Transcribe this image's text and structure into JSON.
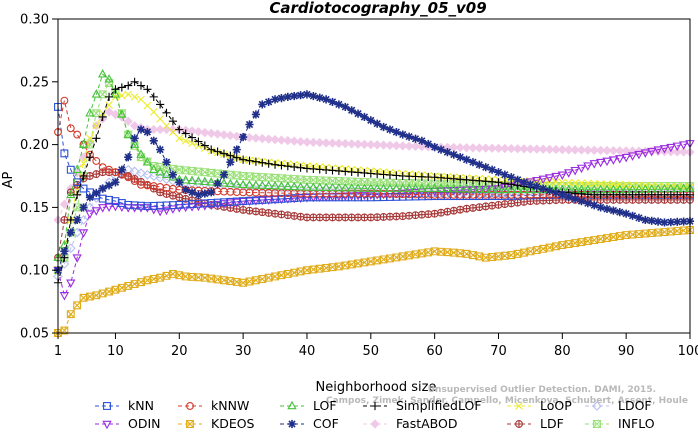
{
  "chart_data": {
    "type": "line",
    "title": "Cardiotocography_05_v09",
    "xlabel": "Neighborhood size",
    "ylabel": "AP",
    "xlim": [
      1,
      100
    ],
    "ylim": [
      0.05,
      0.3
    ],
    "xticks": [
      1,
      10,
      20,
      30,
      40,
      50,
      60,
      70,
      80,
      90,
      100
    ],
    "yticks": [
      0.05,
      0.1,
      0.15,
      0.2,
      0.25,
      0.3
    ],
    "xtick_labels": [
      "1",
      "10",
      "20",
      "30",
      "40",
      "50",
      "60",
      "70",
      "80",
      "90",
      "100"
    ],
    "ytick_labels": [
      "0.05",
      "0.10",
      "0.15",
      "0.20",
      "0.25",
      "0.30"
    ],
    "grid": false,
    "legend_position": "bottom",
    "credit_line1": "Unsupervised Outlier Detection. DAMI, 2015.",
    "credit_line2": "Campos, Zimek, Sander, Campello, Micenkova, Schubert, Assent, Houle",
    "series": [
      {
        "name": "kNN",
        "color": "#2b4fd6",
        "marker": "square",
        "points": [
          [
            1,
            0.23
          ],
          [
            2,
            0.193
          ],
          [
            3,
            0.18
          ],
          [
            4,
            0.17
          ],
          [
            5,
            0.165
          ],
          [
            6,
            0.162
          ],
          [
            8,
            0.157
          ],
          [
            10,
            0.155
          ],
          [
            12,
            0.152
          ],
          [
            15,
            0.151
          ],
          [
            20,
            0.152
          ],
          [
            30,
            0.155
          ],
          [
            40,
            0.158
          ],
          [
            50,
            0.158
          ],
          [
            60,
            0.159
          ],
          [
            70,
            0.159
          ],
          [
            80,
            0.16
          ],
          [
            90,
            0.16
          ],
          [
            100,
            0.16
          ]
        ]
      },
      {
        "name": "kNNW",
        "color": "#d43a2a",
        "marker": "circle",
        "points": [
          [
            1,
            0.21
          ],
          [
            2,
            0.235
          ],
          [
            3,
            0.213
          ],
          [
            4,
            0.208
          ],
          [
            5,
            0.2
          ],
          [
            6,
            0.192
          ],
          [
            7,
            0.187
          ],
          [
            8,
            0.182
          ],
          [
            10,
            0.178
          ],
          [
            12,
            0.174
          ],
          [
            14,
            0.168
          ],
          [
            16,
            0.167
          ],
          [
            20,
            0.164
          ],
          [
            30,
            0.162
          ],
          [
            40,
            0.161
          ],
          [
            50,
            0.161
          ],
          [
            60,
            0.16
          ],
          [
            70,
            0.16
          ],
          [
            80,
            0.16
          ],
          [
            90,
            0.16
          ],
          [
            100,
            0.16
          ]
        ]
      },
      {
        "name": "LOF",
        "color": "#44c23a",
        "marker": "triangle",
        "points": [
          [
            1,
            0.11
          ],
          [
            2,
            0.12
          ],
          [
            3,
            0.16
          ],
          [
            4,
            0.18
          ],
          [
            5,
            0.2
          ],
          [
            6,
            0.225
          ],
          [
            7,
            0.24
          ],
          [
            8,
            0.256
          ],
          [
            9,
            0.252
          ],
          [
            10,
            0.24
          ],
          [
            11,
            0.224
          ],
          [
            12,
            0.208
          ],
          [
            14,
            0.192
          ],
          [
            16,
            0.18
          ],
          [
            20,
            0.172
          ],
          [
            30,
            0.168
          ],
          [
            40,
            0.166
          ],
          [
            50,
            0.165
          ],
          [
            60,
            0.165
          ],
          [
            70,
            0.164
          ],
          [
            80,
            0.164
          ],
          [
            90,
            0.164
          ],
          [
            100,
            0.165
          ]
        ]
      },
      {
        "name": "SimplifiedLOF",
        "color": "#000000",
        "marker": "plus",
        "points": [
          [
            1,
            0.09
          ],
          [
            2,
            0.11
          ],
          [
            3,
            0.14
          ],
          [
            4,
            0.16
          ],
          [
            5,
            0.175
          ],
          [
            6,
            0.19
          ],
          [
            7,
            0.205
          ],
          [
            8,
            0.222
          ],
          [
            9,
            0.238
          ],
          [
            10,
            0.244
          ],
          [
            12,
            0.247
          ],
          [
            13,
            0.25
          ],
          [
            15,
            0.244
          ],
          [
            17,
            0.232
          ],
          [
            20,
            0.212
          ],
          [
            25,
            0.196
          ],
          [
            30,
            0.188
          ],
          [
            35,
            0.184
          ],
          [
            40,
            0.181
          ],
          [
            45,
            0.179
          ],
          [
            50,
            0.177
          ],
          [
            55,
            0.175
          ],
          [
            60,
            0.174
          ],
          [
            65,
            0.172
          ],
          [
            70,
            0.17
          ],
          [
            75,
            0.166
          ],
          [
            80,
            0.162
          ],
          [
            85,
            0.16
          ],
          [
            90,
            0.16
          ],
          [
            100,
            0.16
          ]
        ]
      },
      {
        "name": "LoOP",
        "color": "#ecec2e",
        "marker": "x",
        "points": [
          [
            1,
            0.1
          ],
          [
            2,
            0.115
          ],
          [
            3,
            0.14
          ],
          [
            4,
            0.165
          ],
          [
            5,
            0.185
          ],
          [
            6,
            0.205
          ],
          [
            8,
            0.225
          ],
          [
            10,
            0.238
          ],
          [
            12,
            0.24
          ],
          [
            14,
            0.236
          ],
          [
            16,
            0.226
          ],
          [
            18,
            0.215
          ],
          [
            20,
            0.205
          ],
          [
            25,
            0.195
          ],
          [
            30,
            0.188
          ],
          [
            40,
            0.183
          ],
          [
            50,
            0.179
          ],
          [
            60,
            0.175
          ],
          [
            70,
            0.172
          ],
          [
            80,
            0.17
          ],
          [
            90,
            0.168
          ],
          [
            100,
            0.166
          ]
        ]
      },
      {
        "name": "LDOF",
        "color": "#b8c0f0",
        "marker": "diamond",
        "points": [
          [
            1,
            0.095
          ],
          [
            2,
            0.105
          ],
          [
            4,
            0.13
          ],
          [
            6,
            0.15
          ],
          [
            8,
            0.165
          ],
          [
            10,
            0.175
          ],
          [
            12,
            0.18
          ],
          [
            15,
            0.176
          ],
          [
            20,
            0.17
          ],
          [
            30,
            0.167
          ],
          [
            40,
            0.165
          ],
          [
            50,
            0.164
          ],
          [
            60,
            0.163
          ],
          [
            70,
            0.163
          ],
          [
            80,
            0.163
          ],
          [
            90,
            0.164
          ],
          [
            100,
            0.165
          ]
        ]
      },
      {
        "name": "ODIN",
        "color": "#9a2be0",
        "marker": "triangle-down",
        "points": [
          [
            1,
            0.1
          ],
          [
            2,
            0.08
          ],
          [
            3,
            0.09
          ],
          [
            4,
            0.11
          ],
          [
            5,
            0.13
          ],
          [
            6,
            0.145
          ],
          [
            8,
            0.15
          ],
          [
            10,
            0.151
          ],
          [
            12,
            0.15
          ],
          [
            15,
            0.15
          ],
          [
            17,
            0.147
          ],
          [
            20,
            0.15
          ],
          [
            25,
            0.152
          ],
          [
            30,
            0.155
          ],
          [
            40,
            0.158
          ],
          [
            50,
            0.16
          ],
          [
            60,
            0.163
          ],
          [
            70,
            0.165
          ],
          [
            80,
            0.176
          ],
          [
            85,
            0.185
          ],
          [
            90,
            0.19
          ],
          [
            95,
            0.196
          ],
          [
            100,
            0.201
          ]
        ]
      },
      {
        "name": "KDEOS",
        "color": "#e0ac1a",
        "marker": "square-x",
        "points": [
          [
            1,
            0.05
          ],
          [
            2,
            0.052
          ],
          [
            3,
            0.065
          ],
          [
            4,
            0.072
          ],
          [
            5,
            0.078
          ],
          [
            7,
            0.08
          ],
          [
            9,
            0.083
          ],
          [
            11,
            0.086
          ],
          [
            13,
            0.089
          ],
          [
            15,
            0.092
          ],
          [
            17,
            0.094
          ],
          [
            19,
            0.097
          ],
          [
            21,
            0.095
          ],
          [
            24,
            0.094
          ],
          [
            27,
            0.092
          ],
          [
            30,
            0.09
          ],
          [
            33,
            0.093
          ],
          [
            36,
            0.096
          ],
          [
            40,
            0.1
          ],
          [
            45,
            0.103
          ],
          [
            50,
            0.107
          ],
          [
            55,
            0.111
          ],
          [
            60,
            0.115
          ],
          [
            63,
            0.114
          ],
          [
            65,
            0.113
          ],
          [
            68,
            0.11
          ],
          [
            72,
            0.112
          ],
          [
            76,
            0.116
          ],
          [
            80,
            0.12
          ],
          [
            85,
            0.124
          ],
          [
            90,
            0.128
          ],
          [
            95,
            0.13
          ],
          [
            100,
            0.132
          ]
        ]
      },
      {
        "name": "LDF",
        "color": "#a83838",
        "marker": "circle-plus",
        "points": [
          [
            1,
            0.11
          ],
          [
            2,
            0.14
          ],
          [
            3,
            0.162
          ],
          [
            4,
            0.168
          ],
          [
            5,
            0.173
          ],
          [
            6,
            0.175
          ],
          [
            8,
            0.178
          ],
          [
            10,
            0.178
          ],
          [
            12,
            0.175
          ],
          [
            15,
            0.168
          ],
          [
            17,
            0.162
          ],
          [
            20,
            0.158
          ],
          [
            25,
            0.152
          ],
          [
            30,
            0.148
          ],
          [
            35,
            0.145
          ],
          [
            40,
            0.142
          ],
          [
            45,
            0.142
          ],
          [
            50,
            0.142
          ],
          [
            55,
            0.143
          ],
          [
            60,
            0.145
          ],
          [
            65,
            0.149
          ],
          [
            70,
            0.152
          ],
          [
            75,
            0.155
          ],
          [
            80,
            0.156
          ],
          [
            90,
            0.156
          ],
          [
            100,
            0.156
          ]
        ]
      },
      {
        "name": "COF",
        "color": "#1f2f8a",
        "marker": "asterisk",
        "points": [
          [
            1,
            0.1
          ],
          [
            3,
            0.13
          ],
          [
            5,
            0.15
          ],
          [
            6,
            0.158
          ],
          [
            8,
            0.165
          ],
          [
            10,
            0.17
          ],
          [
            12,
            0.19
          ],
          [
            13,
            0.205
          ],
          [
            14,
            0.212
          ],
          [
            15,
            0.21
          ],
          [
            17,
            0.196
          ],
          [
            19,
            0.176
          ],
          [
            21,
            0.164
          ],
          [
            23,
            0.16
          ],
          [
            25,
            0.162
          ],
          [
            27,
            0.176
          ],
          [
            29,
            0.196
          ],
          [
            31,
            0.216
          ],
          [
            33,
            0.232
          ],
          [
            35,
            0.236
          ],
          [
            37,
            0.238
          ],
          [
            40,
            0.24
          ],
          [
            43,
            0.236
          ],
          [
            46,
            0.23
          ],
          [
            49,
            0.222
          ],
          [
            52,
            0.214
          ],
          [
            55,
            0.208
          ],
          [
            58,
            0.203
          ],
          [
            60,
            0.198
          ],
          [
            63,
            0.192
          ],
          [
            65,
            0.188
          ],
          [
            68,
            0.182
          ],
          [
            71,
            0.176
          ],
          [
            74,
            0.17
          ],
          [
            77,
            0.165
          ],
          [
            80,
            0.16
          ],
          [
            83,
            0.155
          ],
          [
            86,
            0.15
          ],
          [
            90,
            0.145
          ],
          [
            93,
            0.14
          ],
          [
            96,
            0.138
          ],
          [
            100,
            0.139
          ]
        ]
      },
      {
        "name": "FastABOD",
        "color": "#f0c8e8",
        "marker": "diamond-filled",
        "points": [
          [
            1,
            0.14
          ],
          [
            3,
            0.165
          ],
          [
            5,
            0.19
          ],
          [
            7,
            0.215
          ],
          [
            9,
            0.226
          ],
          [
            11,
            0.222
          ],
          [
            13,
            0.215
          ],
          [
            15,
            0.212
          ],
          [
            18,
            0.212
          ],
          [
            20,
            0.212
          ],
          [
            25,
            0.209
          ],
          [
            30,
            0.206
          ],
          [
            40,
            0.202
          ],
          [
            50,
            0.2
          ],
          [
            60,
            0.198
          ],
          [
            70,
            0.197
          ],
          [
            80,
            0.196
          ],
          [
            90,
            0.195
          ],
          [
            100,
            0.194
          ]
        ]
      },
      {
        "name": "INFLO",
        "color": "#9ae078",
        "marker": "hourglass",
        "points": [
          [
            1,
            0.1
          ],
          [
            2,
            0.11
          ],
          [
            3,
            0.13
          ],
          [
            4,
            0.15
          ],
          [
            5,
            0.175
          ],
          [
            6,
            0.2
          ],
          [
            7,
            0.225
          ],
          [
            8,
            0.24
          ],
          [
            9,
            0.249
          ],
          [
            10,
            0.242
          ],
          [
            11,
            0.225
          ],
          [
            12,
            0.208
          ],
          [
            14,
            0.19
          ],
          [
            16,
            0.183
          ],
          [
            20,
            0.18
          ],
          [
            30,
            0.175
          ],
          [
            40,
            0.172
          ],
          [
            50,
            0.17
          ],
          [
            60,
            0.169
          ],
          [
            70,
            0.168
          ],
          [
            80,
            0.167
          ],
          [
            90,
            0.167
          ],
          [
            100,
            0.167
          ]
        ]
      }
    ]
  }
}
